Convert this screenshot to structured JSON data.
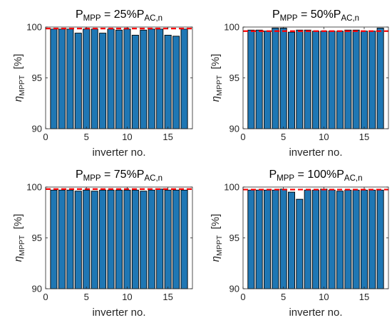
{
  "chart_data": [
    {
      "type": "bar",
      "title": {
        "main": "P",
        "main_sub": "MPP",
        "mid": " = 25%P",
        "tail_sub": "AC,n"
      },
      "xlabel": "inverter no.",
      "ylabel": {
        "symbol": "η",
        "sub": "MPPT",
        "unit": "[%]"
      },
      "x": [
        1,
        2,
        3,
        4,
        5,
        6,
        7,
        8,
        9,
        10,
        11,
        12,
        13,
        14,
        15,
        16,
        17
      ],
      "values": [
        99.8,
        99.8,
        99.8,
        99.4,
        99.8,
        99.8,
        99.4,
        99.8,
        99.7,
        99.8,
        99.2,
        99.7,
        99.8,
        99.8,
        99.2,
        99.1,
        99.8
      ],
      "reference_line": 99.85,
      "xlim": [
        0,
        18
      ],
      "ylim": [
        90,
        100
      ],
      "xticks": [
        0,
        5,
        10,
        15
      ],
      "yticks": [
        90,
        95,
        100
      ],
      "bar_color": "#1f77b4",
      "reference_color": "#ff0000",
      "grid": false
    },
    {
      "type": "bar",
      "title": {
        "main": "P",
        "main_sub": "MPP",
        "mid": " = 50%P",
        "tail_sub": "AC,n"
      },
      "xlabel": "inverter no.",
      "ylabel": {
        "symbol": "η",
        "sub": "MPPT",
        "unit": "[%]"
      },
      "x": [
        1,
        2,
        3,
        4,
        5,
        6,
        7,
        8,
        9,
        10,
        11,
        12,
        13,
        14,
        15,
        16,
        17
      ],
      "values": [
        99.7,
        99.7,
        99.6,
        99.9,
        99.9,
        99.5,
        99.7,
        99.7,
        99.6,
        99.6,
        99.6,
        99.6,
        99.7,
        99.7,
        99.6,
        99.6,
        99.9
      ],
      "reference_line": 99.6,
      "xlim": [
        0,
        18
      ],
      "ylim": [
        90,
        100
      ],
      "xticks": [
        0,
        5,
        10,
        15
      ],
      "yticks": [
        90,
        95,
        100
      ],
      "bar_color": "#1f77b4",
      "reference_color": "#ff0000",
      "grid": false
    },
    {
      "type": "bar",
      "title": {
        "main": "P",
        "main_sub": "MPP",
        "mid": " = 75%P",
        "tail_sub": "AC,n"
      },
      "xlabel": "inverter no.",
      "ylabel": {
        "symbol": "η",
        "sub": "MPPT",
        "unit": "[%]"
      },
      "x": [
        1,
        2,
        3,
        4,
        5,
        6,
        7,
        8,
        9,
        10,
        11,
        12,
        13,
        14,
        15,
        16,
        17
      ],
      "values": [
        99.7,
        99.7,
        99.7,
        99.6,
        99.7,
        99.6,
        99.7,
        99.7,
        99.7,
        99.7,
        99.7,
        99.6,
        99.7,
        99.8,
        99.7,
        99.7,
        99.7
      ],
      "reference_line": 99.8,
      "xlim": [
        0,
        18
      ],
      "ylim": [
        90,
        100
      ],
      "xticks": [
        0,
        5,
        10,
        15
      ],
      "yticks": [
        90,
        95,
        100
      ],
      "bar_color": "#1f77b4",
      "reference_color": "#ff0000",
      "grid": false
    },
    {
      "type": "bar",
      "title": {
        "main": "P",
        "main_sub": "MPP",
        "mid": " = 100%P",
        "tail_sub": "AC,n"
      },
      "xlabel": "inverter no.",
      "ylabel": {
        "symbol": "η",
        "sub": "MPPT",
        "unit": "[%]"
      },
      "x": [
        1,
        2,
        3,
        4,
        5,
        6,
        7,
        8,
        9,
        10,
        11,
        12,
        13,
        14,
        15,
        16,
        17
      ],
      "values": [
        99.7,
        99.7,
        99.7,
        99.7,
        99.8,
        99.5,
        98.8,
        99.7,
        99.7,
        99.8,
        99.7,
        99.6,
        99.7,
        99.7,
        99.7,
        99.7,
        99.7
      ],
      "reference_line": 99.75,
      "xlim": [
        0,
        18
      ],
      "ylim": [
        90,
        100
      ],
      "xticks": [
        0,
        5,
        10,
        15
      ],
      "yticks": [
        90,
        95,
        100
      ],
      "bar_color": "#1f77b4",
      "reference_color": "#ff0000",
      "grid": false
    }
  ]
}
